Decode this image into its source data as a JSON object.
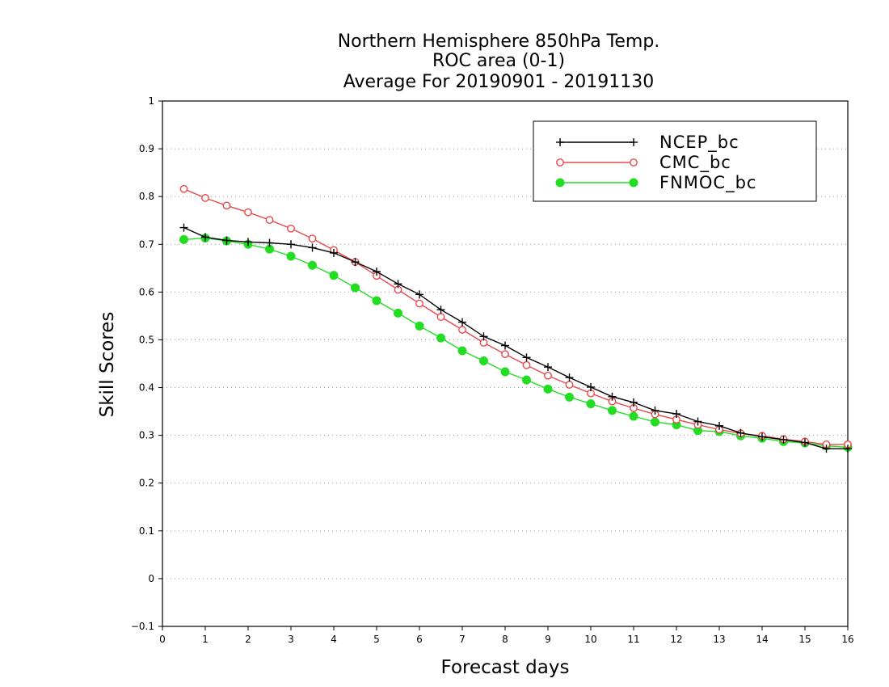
{
  "chart_data": {
    "type": "line",
    "title_lines": [
      "Northern Hemisphere 850hPa Temp.",
      "ROC area (0-1)",
      "Average For 20190901 - 20191130"
    ],
    "xlabel": "Forecast days",
    "ylabel": "Skill Scores",
    "xlim": [
      0,
      16
    ],
    "ylim": [
      -0.1,
      1
    ],
    "x_ticks": [
      "0",
      "1",
      "2",
      "3",
      "4",
      "5",
      "6",
      "7",
      "8",
      "9",
      "10",
      "11",
      "12",
      "13",
      "14",
      "15",
      "16"
    ],
    "y_ticks": [
      "−0.1",
      "0",
      "0.1",
      "0.2",
      "0.3",
      "0.4",
      "0.5",
      "0.6",
      "0.7",
      "0.8",
      "0.9",
      "1"
    ],
    "grid": "horizontal dotted",
    "legend_position": "top-right",
    "x": [
      0.5,
      1,
      1.5,
      2,
      2.5,
      3,
      3.5,
      4,
      4.5,
      5,
      5.5,
      6,
      6.5,
      7,
      7.5,
      8,
      8.5,
      9,
      9.5,
      10,
      10.5,
      11,
      11.5,
      12,
      12.5,
      13,
      13.5,
      14,
      14.5,
      15,
      15.5,
      16
    ],
    "series": [
      {
        "name": "NCEP_bc",
        "color": "#000000",
        "marker": "plus",
        "values": [
          0.735,
          0.715,
          0.708,
          0.705,
          0.703,
          0.7,
          0.693,
          0.682,
          0.663,
          0.643,
          0.617,
          0.595,
          0.563,
          0.537,
          0.507,
          0.488,
          0.463,
          0.443,
          0.421,
          0.401,
          0.381,
          0.369,
          0.352,
          0.345,
          0.329,
          0.32,
          0.305,
          0.297,
          0.291,
          0.285,
          0.272,
          0.272
        ]
      },
      {
        "name": "CMC_bc",
        "color": "#e8484b",
        "marker": "open-circle",
        "values": [
          0.816,
          0.797,
          0.781,
          0.767,
          0.751,
          0.733,
          0.712,
          0.688,
          0.663,
          0.634,
          0.605,
          0.576,
          0.548,
          0.521,
          0.494,
          0.47,
          0.447,
          0.425,
          0.406,
          0.388,
          0.371,
          0.357,
          0.344,
          0.333,
          0.322,
          0.312,
          0.304,
          0.299,
          0.292,
          0.287,
          0.281,
          0.281
        ]
      },
      {
        "name": "FNMOC_bc",
        "color": "#22dd22",
        "marker": "filled-circle",
        "values": [
          0.71,
          0.713,
          0.707,
          0.7,
          0.69,
          0.675,
          0.656,
          0.635,
          0.609,
          0.582,
          0.556,
          0.529,
          0.504,
          0.477,
          0.456,
          0.433,
          0.416,
          0.397,
          0.38,
          0.366,
          0.352,
          0.34,
          0.328,
          0.322,
          0.31,
          0.308,
          0.299,
          0.294,
          0.287,
          0.284,
          0.278,
          0.275
        ]
      }
    ]
  }
}
